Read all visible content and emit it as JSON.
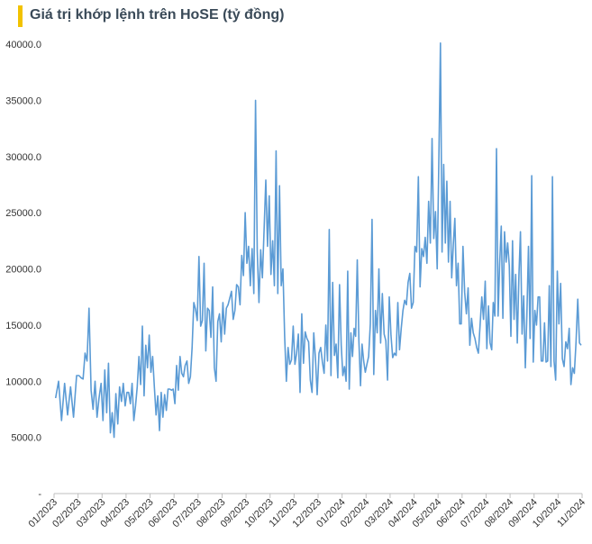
{
  "title": "Giá trị khớp lệnh trên HoSE (tỷ đồng)",
  "accent_color": "#f2c200",
  "chart_data": {
    "type": "line",
    "title": "Giá trị khớp lệnh trên HoSE (tỷ đồng)",
    "xlabel": "",
    "ylabel": "",
    "ylim": [
      0,
      40000
    ],
    "yticks": [
      "-",
      "5000.0",
      "10000.0",
      "15000.0",
      "20000.0",
      "25000.0",
      "30000.0",
      "35000.0",
      "40000.0"
    ],
    "xticks": [
      "01/2023",
      "02/2023",
      "03/2023",
      "04/2023",
      "05/2023",
      "06/2023",
      "07/2023",
      "08/2023",
      "09/2023",
      "10/2023",
      "11/2023",
      "12/2023",
      "01/2024",
      "02/2024",
      "03/2024",
      "04/2024",
      "05/2024",
      "06/2024",
      "07/2024",
      "08/2024",
      "09/2024",
      "10/2024",
      "11/2024"
    ],
    "grid": false,
    "line_color": "#5b9bd5",
    "series": [
      {
        "monthly_values": [
          [
            8500,
            10000,
            6500,
            9800,
            7000,
            9500,
            6800,
            10500
          ],
          [
            10500,
            10300,
            10200,
            12500,
            11800,
            16500,
            9200,
            7500,
            10000,
            6800,
            8500,
            9800
          ],
          [
            6500,
            11000,
            7200,
            11600,
            5400,
            7200,
            5000,
            8900,
            6200,
            9500,
            8200,
            9800,
            7800
          ],
          [
            9000,
            9000,
            8000,
            9800,
            6500,
            7800,
            9500,
            12200,
            9700,
            14900,
            8700,
            13200,
            11200,
            14100
          ],
          [
            10800,
            12200,
            9500,
            7000,
            8700,
            5600,
            9000,
            6800,
            8800,
            7400,
            9300,
            9300,
            9200,
            9300
          ],
          [
            8000,
            11400,
            9200,
            12200,
            10700,
            10400,
            11400,
            11800,
            9800,
            10400,
            13000,
            17000,
            16400,
            15400
          ],
          [
            21100,
            14900,
            15400,
            20500,
            12700,
            16500,
            16300,
            13900,
            18400,
            11200,
            10000,
            15300,
            16000,
            13500
          ],
          [
            17000,
            14200,
            16500,
            16800,
            17400,
            18000,
            15500,
            16300,
            18600,
            18400,
            16800,
            21200,
            19400,
            25000
          ],
          [
            20500,
            22000,
            18500,
            21800,
            17800,
            35000,
            21600,
            17000,
            21700,
            19200,
            23500,
            27900,
            22000,
            26500
          ],
          [
            19500,
            22500,
            18500,
            30500,
            17800,
            27400,
            18500,
            20000,
            14000,
            10000,
            13000,
            11500,
            11900,
            14900
          ],
          [
            11500,
            12500,
            14200,
            9000,
            16000,
            11600,
            14400,
            13800,
            13500,
            10100,
            9000,
            14300,
            12000,
            8800
          ],
          [
            12500,
            13000,
            11700,
            10700,
            15000,
            11800,
            23500,
            10500,
            18800,
            12300,
            13300,
            10300,
            18600,
            13200
          ],
          [
            10500,
            11300,
            10000,
            19800,
            9300,
            14300,
            12200,
            14700,
            14000,
            20800,
            13600,
            9600,
            13300,
            11800,
            10800
          ],
          [
            11500,
            12200,
            15100,
            24400,
            10600,
            16300,
            14300,
            20000,
            13400,
            17800,
            14200,
            13600,
            10100,
            17500
          ],
          [
            14100,
            12100,
            12500,
            12300,
            17000,
            12800,
            14700,
            16300,
            17200,
            16800,
            18800,
            19600,
            16500,
            17000
          ],
          [
            22000,
            21500,
            28200,
            18400,
            21800,
            21100,
            22800,
            20500,
            26000,
            22300,
            31600,
            22700,
            25100,
            20000
          ],
          [
            30000,
            40100,
            21500,
            29300,
            22300,
            27800,
            20600,
            26000,
            19200,
            22200,
            24500,
            18500,
            20500,
            15100,
            15100
          ],
          [
            22000,
            17900,
            16000,
            18300,
            13200,
            15600,
            14300,
            13800,
            13000,
            12500,
            15000,
            17500,
            15500,
            18900
          ],
          [
            12900,
            16700,
            13400,
            12800,
            17000,
            15800,
            30700,
            15800,
            20500,
            23800,
            15600,
            23300,
            20600,
            22300,
            20300
          ],
          [
            14000,
            22500,
            15500,
            19500,
            13400,
            19400,
            23300,
            14200,
            17600,
            11200,
            15800,
            22000,
            13800,
            28300,
            11700
          ],
          [
            16300,
            15000,
            17500,
            17500,
            11800,
            11800,
            15200,
            11700,
            11800,
            18500,
            11300,
            28200,
            11800,
            10100,
            19800
          ],
          [
            15100,
            18700,
            12000,
            11300,
            13500,
            12900,
            14700,
            9700,
            11200,
            10700,
            13500,
            17300,
            13400,
            13200
          ]
        ]
      }
    ]
  }
}
